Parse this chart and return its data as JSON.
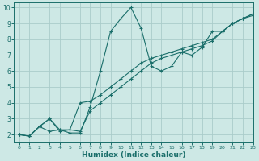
{
  "title": "",
  "xlabel": "Humidex (Indice chaleur)",
  "ylabel": "",
  "background_color": "#cde8e5",
  "grid_color": "#aaccca",
  "line_color": "#1a6e6a",
  "xlim": [
    -0.5,
    23
  ],
  "ylim": [
    1.5,
    10.3
  ],
  "xticks": [
    0,
    1,
    2,
    3,
    4,
    5,
    6,
    7,
    8,
    9,
    10,
    11,
    12,
    13,
    14,
    15,
    16,
    17,
    18,
    19,
    20,
    21,
    22,
    23
  ],
  "yticks": [
    2,
    3,
    4,
    5,
    6,
    7,
    8,
    9,
    10
  ],
  "series": [
    {
      "x": [
        0,
        1,
        2,
        3,
        4,
        5,
        6,
        7,
        8,
        9,
        10,
        11,
        12,
        13,
        14,
        15,
        16,
        17,
        18,
        19,
        20,
        21,
        22,
        23
      ],
      "y": [
        2.0,
        1.9,
        2.5,
        2.2,
        2.3,
        2.1,
        2.1,
        3.75,
        6.0,
        8.5,
        9.3,
        10.0,
        8.7,
        6.3,
        6.0,
        6.3,
        7.2,
        7.0,
        7.5,
        8.5,
        8.5,
        9.0,
        9.3,
        9.6
      ]
    },
    {
      "x": [
        0,
        1,
        2,
        3,
        4,
        5,
        6,
        7,
        8,
        9,
        10,
        11,
        12,
        13,
        14,
        15,
        16,
        17,
        18,
        19,
        20,
        21,
        22,
        23
      ],
      "y": [
        2.0,
        1.9,
        2.5,
        3.0,
        2.3,
        2.3,
        2.2,
        3.5,
        4.0,
        4.5,
        5.0,
        5.5,
        6.0,
        6.5,
        6.8,
        7.0,
        7.2,
        7.4,
        7.6,
        7.9,
        8.5,
        9.0,
        9.3,
        9.5
      ]
    },
    {
      "x": [
        0,
        1,
        2,
        3,
        4,
        5,
        6,
        7,
        8,
        9,
        10,
        11,
        12,
        13,
        14,
        15,
        16,
        17,
        18,
        19,
        20,
        21,
        22,
        23
      ],
      "y": [
        2.0,
        1.9,
        2.5,
        3.0,
        2.2,
        2.3,
        4.0,
        4.1,
        4.5,
        5.0,
        5.5,
        6.0,
        6.5,
        6.8,
        7.0,
        7.2,
        7.4,
        7.6,
        7.8,
        8.0,
        8.5,
        9.0,
        9.3,
        9.6
      ]
    }
  ]
}
